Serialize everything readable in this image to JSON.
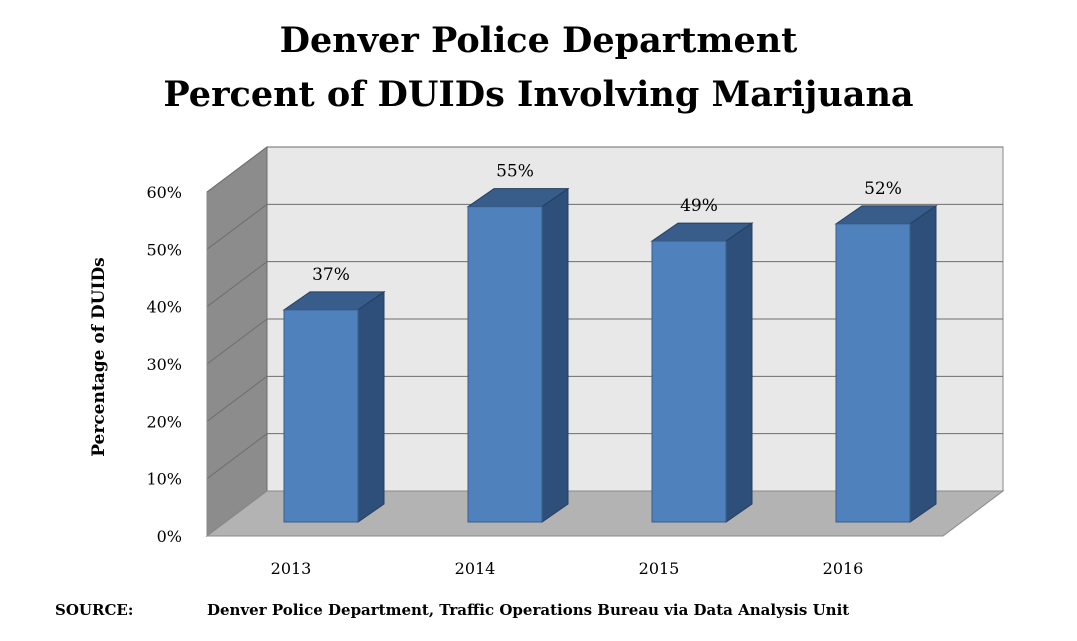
{
  "title": {
    "line1": "Denver Police Department",
    "line2": "Percent of DUIDs Involving Marijuana"
  },
  "chart_data": {
    "type": "bar",
    "title": "Denver Police Department Percent of DUIDs Involving Marijuana",
    "categories": [
      "2013",
      "2014",
      "2015",
      "2016"
    ],
    "values": [
      37,
      55,
      49,
      52
    ],
    "data_labels": [
      "37%",
      "55%",
      "49%",
      "52%"
    ],
    "ylabel": "Percentage of DUIDs",
    "xlabel": "",
    "ylim": [
      0,
      60
    ],
    "yticks": [
      0,
      10,
      20,
      30,
      40,
      50,
      60
    ],
    "ytick_labels": [
      "0%",
      "10%",
      "20%",
      "30%",
      "40%",
      "50%",
      "60%"
    ],
    "grid": true,
    "style": "3d",
    "legend": "none"
  },
  "colors": {
    "bar_front": "#4f81bd",
    "bar_side": "#2e4f7a",
    "bar_top": "#385d8a",
    "back_wall": "#e8e8e8",
    "side_wall": "#8c8c8c",
    "floor": "#b3b3b3"
  },
  "source": {
    "label": "SOURCE:",
    "text": "Denver Police Department, Traffic Operations Bureau via Data Analysis Unit"
  }
}
